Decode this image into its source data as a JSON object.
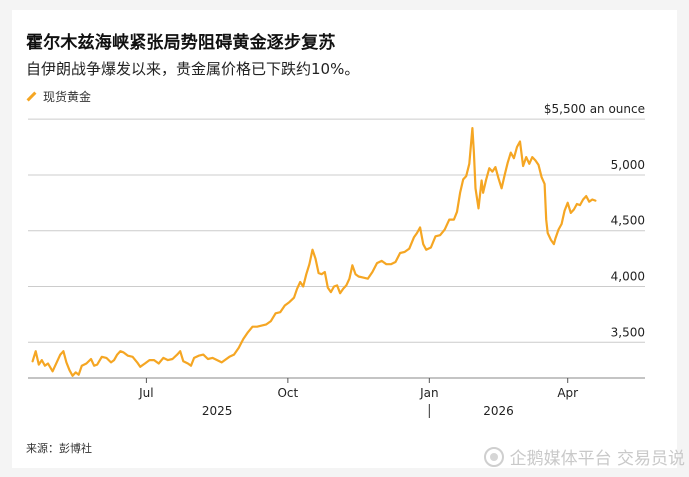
{
  "header": {
    "title": "霍尔木兹海峡紧张局势阻碍黄金逐步复苏",
    "subtitle": "自伊朗战争爆发以来，贵金属价格已下跌约10%。"
  },
  "footer": {
    "source": "来源：彭博社",
    "watermark": "企鹅媒体平台 交易员说"
  },
  "colors": {
    "series": "#f5a623",
    "grid": "#cccccc",
    "background": "#ffffff"
  },
  "chart_data": {
    "type": "line",
    "title": "霍尔木兹海峡紧张局势阻碍黄金逐步复苏",
    "subtitle": "自伊朗战争爆发以来，贵金属价格已下跌约10%。",
    "ylabel": "",
    "y_unit_label": "$5,500 an ounce",
    "ylim": [
      3180,
      5600
    ],
    "yticks": [
      {
        "value": 5500,
        "label": "$5,500 an ounce"
      },
      {
        "value": 5000,
        "label": "5,000"
      },
      {
        "value": 4500,
        "label": "4,500"
      },
      {
        "value": 4000,
        "label": "4,000"
      },
      {
        "value": 3500,
        "label": "3,500"
      }
    ],
    "xlim": [
      "2025-04-15",
      "2026-04-22"
    ],
    "xticks": [
      {
        "date": "2025-07-01",
        "label": "Jul"
      },
      {
        "date": "2025-10-01",
        "label": "Oct"
      },
      {
        "date": "2026-01-01",
        "label": "Jan"
      },
      {
        "date": "2026-04-01",
        "label": "Apr"
      }
    ],
    "year_labels": [
      {
        "date": "2025-08-16",
        "label": "2025"
      },
      {
        "date": "2026-02-15",
        "label": "2026"
      }
    ],
    "year_divider": "2026-01-01",
    "legend_position": "top-left",
    "grid": true,
    "series": [
      {
        "name": "现货黄金",
        "points": [
          [
            "2025-04-18",
            3330
          ],
          [
            "2025-04-20",
            3420
          ],
          [
            "2025-04-22",
            3300
          ],
          [
            "2025-04-24",
            3340
          ],
          [
            "2025-04-26",
            3290
          ],
          [
            "2025-04-28",
            3310
          ],
          [
            "2025-05-01",
            3240
          ],
          [
            "2025-05-04",
            3330
          ],
          [
            "2025-05-06",
            3390
          ],
          [
            "2025-05-08",
            3420
          ],
          [
            "2025-05-10",
            3320
          ],
          [
            "2025-05-12",
            3250
          ],
          [
            "2025-05-14",
            3200
          ],
          [
            "2025-05-16",
            3230
          ],
          [
            "2025-05-18",
            3210
          ],
          [
            "2025-05-20",
            3290
          ],
          [
            "2025-05-23",
            3310
          ],
          [
            "2025-05-26",
            3350
          ],
          [
            "2025-05-28",
            3290
          ],
          [
            "2025-05-30",
            3300
          ],
          [
            "2025-06-02",
            3370
          ],
          [
            "2025-06-05",
            3360
          ],
          [
            "2025-06-08",
            3320
          ],
          [
            "2025-06-10",
            3340
          ],
          [
            "2025-06-12",
            3390
          ],
          [
            "2025-06-14",
            3420
          ],
          [
            "2025-06-16",
            3410
          ],
          [
            "2025-06-19",
            3380
          ],
          [
            "2025-06-22",
            3370
          ],
          [
            "2025-06-25",
            3320
          ],
          [
            "2025-06-27",
            3280
          ],
          [
            "2025-06-30",
            3310
          ],
          [
            "2025-07-03",
            3340
          ],
          [
            "2025-07-06",
            3340
          ],
          [
            "2025-07-09",
            3310
          ],
          [
            "2025-07-12",
            3360
          ],
          [
            "2025-07-15",
            3340
          ],
          [
            "2025-07-18",
            3350
          ],
          [
            "2025-07-21",
            3390
          ],
          [
            "2025-07-23",
            3420
          ],
          [
            "2025-07-25",
            3330
          ],
          [
            "2025-07-28",
            3310
          ],
          [
            "2025-07-30",
            3290
          ],
          [
            "2025-08-01",
            3360
          ],
          [
            "2025-08-04",
            3380
          ],
          [
            "2025-08-07",
            3390
          ],
          [
            "2025-08-10",
            3350
          ],
          [
            "2025-08-13",
            3360
          ],
          [
            "2025-08-16",
            3340
          ],
          [
            "2025-08-19",
            3320
          ],
          [
            "2025-08-21",
            3340
          ],
          [
            "2025-08-24",
            3370
          ],
          [
            "2025-08-27",
            3390
          ],
          [
            "2025-08-30",
            3450
          ],
          [
            "2025-09-02",
            3530
          ],
          [
            "2025-09-05",
            3590
          ],
          [
            "2025-09-08",
            3640
          ],
          [
            "2025-09-11",
            3640
          ],
          [
            "2025-09-14",
            3650
          ],
          [
            "2025-09-17",
            3660
          ],
          [
            "2025-09-20",
            3690
          ],
          [
            "2025-09-23",
            3760
          ],
          [
            "2025-09-26",
            3770
          ],
          [
            "2025-09-29",
            3830
          ],
          [
            "2025-10-02",
            3860
          ],
          [
            "2025-10-05",
            3900
          ],
          [
            "2025-10-07",
            3980
          ],
          [
            "2025-10-09",
            4040
          ],
          [
            "2025-10-11",
            4000
          ],
          [
            "2025-10-13",
            4110
          ],
          [
            "2025-10-15",
            4200
          ],
          [
            "2025-10-17",
            4330
          ],
          [
            "2025-10-19",
            4250
          ],
          [
            "2025-10-21",
            4120
          ],
          [
            "2025-10-23",
            4110
          ],
          [
            "2025-10-25",
            4130
          ],
          [
            "2025-10-27",
            3990
          ],
          [
            "2025-10-29",
            3950
          ],
          [
            "2025-10-31",
            4000
          ],
          [
            "2025-11-02",
            4010
          ],
          [
            "2025-11-04",
            3940
          ],
          [
            "2025-11-06",
            3980
          ],
          [
            "2025-11-08",
            4010
          ],
          [
            "2025-11-10",
            4070
          ],
          [
            "2025-11-12",
            4190
          ],
          [
            "2025-11-14",
            4110
          ],
          [
            "2025-11-16",
            4090
          ],
          [
            "2025-11-19",
            4080
          ],
          [
            "2025-11-22",
            4070
          ],
          [
            "2025-11-25",
            4130
          ],
          [
            "2025-11-28",
            4210
          ],
          [
            "2025-12-01",
            4230
          ],
          [
            "2025-12-04",
            4200
          ],
          [
            "2025-12-07",
            4200
          ],
          [
            "2025-12-10",
            4220
          ],
          [
            "2025-12-13",
            4300
          ],
          [
            "2025-12-16",
            4310
          ],
          [
            "2025-12-19",
            4340
          ],
          [
            "2025-12-22",
            4440
          ],
          [
            "2025-12-24",
            4480
          ],
          [
            "2025-12-26",
            4530
          ],
          [
            "2025-12-28",
            4380
          ],
          [
            "2025-12-30",
            4330
          ],
          [
            "2026-01-02",
            4350
          ],
          [
            "2026-01-05",
            4450
          ],
          [
            "2026-01-08",
            4460
          ],
          [
            "2026-01-11",
            4510
          ],
          [
            "2026-01-14",
            4600
          ],
          [
            "2026-01-17",
            4600
          ],
          [
            "2026-01-19",
            4670
          ],
          [
            "2026-01-21",
            4840
          ],
          [
            "2026-01-23",
            4960
          ],
          [
            "2026-01-25",
            4990
          ],
          [
            "2026-01-27",
            5100
          ],
          [
            "2026-01-29",
            5420
          ],
          [
            "2026-01-30",
            5200
          ],
          [
            "2026-01-31",
            4880
          ],
          [
            "2026-02-02",
            4700
          ],
          [
            "2026-02-04",
            4950
          ],
          [
            "2026-02-05",
            4840
          ],
          [
            "2026-02-07",
            4960
          ],
          [
            "2026-02-09",
            5060
          ],
          [
            "2026-02-11",
            5030
          ],
          [
            "2026-02-13",
            5070
          ],
          [
            "2026-02-15",
            4970
          ],
          [
            "2026-02-17",
            4880
          ],
          [
            "2026-02-19",
            5000
          ],
          [
            "2026-02-21",
            5110
          ],
          [
            "2026-02-23",
            5200
          ],
          [
            "2026-02-25",
            5150
          ],
          [
            "2026-02-27",
            5250
          ],
          [
            "2026-03-01",
            5300
          ],
          [
            "2026-03-03",
            5080
          ],
          [
            "2026-03-05",
            5160
          ],
          [
            "2026-03-07",
            5100
          ],
          [
            "2026-03-09",
            5160
          ],
          [
            "2026-03-11",
            5130
          ],
          [
            "2026-03-13",
            5090
          ],
          [
            "2026-03-15",
            4980
          ],
          [
            "2026-03-17",
            4920
          ],
          [
            "2026-03-18",
            4600
          ],
          [
            "2026-03-19",
            4480
          ],
          [
            "2026-03-21",
            4420
          ],
          [
            "2026-03-23",
            4380
          ],
          [
            "2026-03-24",
            4430
          ],
          [
            "2026-03-26",
            4510
          ],
          [
            "2026-03-28",
            4560
          ],
          [
            "2026-03-30",
            4680
          ],
          [
            "2026-04-01",
            4750
          ],
          [
            "2026-04-03",
            4660
          ],
          [
            "2026-04-05",
            4690
          ],
          [
            "2026-04-07",
            4740
          ],
          [
            "2026-04-09",
            4730
          ],
          [
            "2026-04-11",
            4780
          ],
          [
            "2026-04-13",
            4810
          ],
          [
            "2026-04-15",
            4760
          ],
          [
            "2026-04-17",
            4780
          ],
          [
            "2026-04-19",
            4770
          ]
        ]
      }
    ]
  }
}
